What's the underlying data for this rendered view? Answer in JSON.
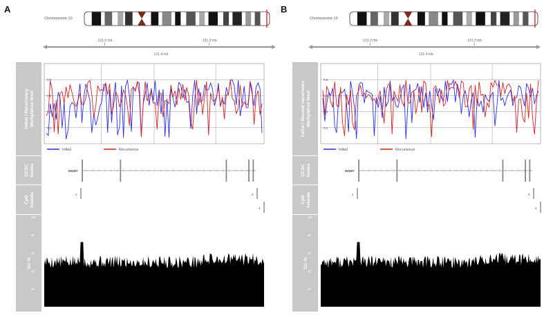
{
  "panels": [
    {
      "letter": "A",
      "chromosome_label": "Chromosome 10",
      "scale_ticks": [
        "131.2 mb",
        "131.3 mb"
      ],
      "scale_center": "131.4 mb",
      "methyl_track_label": [
        "Initial / Recurrency",
        "Methylation level"
      ],
      "methyl_ticks": [
        "0.8",
        "0.6",
        "0.4",
        "0.2"
      ],
      "legend": [
        "Initial",
        "Recurrence"
      ],
      "genes_track_label": [
        "UCSC",
        "Genes"
      ],
      "gene_name": "MGMT",
      "cpg_track_label": [
        "CpG",
        "Islands"
      ],
      "cpg_ids": [
        "1",
        "2",
        "3"
      ],
      "gc_track_label": "GC %",
      "gc_ticks": [
        "100",
        "80",
        "60",
        "40",
        "20"
      ]
    },
    {
      "letter": "B",
      "chromosome_label": "Chromosome 10",
      "scale_ticks": [
        "131.2 mb",
        "131.3 mb"
      ],
      "scale_center": "131.4 mb",
      "methyl_track_label": [
        "Initial / Second recurrence",
        "Methylation level"
      ],
      "methyl_ticks": [
        "0.8",
        "0.6",
        "0.4",
        "0.2"
      ],
      "legend": [
        "Initial",
        "Recurrence"
      ],
      "genes_track_label": [
        "UCSC",
        "Genes"
      ],
      "gene_name": "MGMT",
      "cpg_track_label": [
        "CpG",
        "Islands"
      ],
      "cpg_ids": [
        "1",
        "2",
        "3"
      ],
      "gc_track_label": "GC %",
      "gc_ticks": [
        "100",
        "80",
        "60",
        "40",
        "20"
      ]
    }
  ],
  "colors": {
    "initial": "#2b2bf0",
    "recurrence": "#d42020",
    "track_label_bg": "#c8c8c8",
    "gc_fill": "#000000",
    "grid": "#9a9a9a"
  }
}
